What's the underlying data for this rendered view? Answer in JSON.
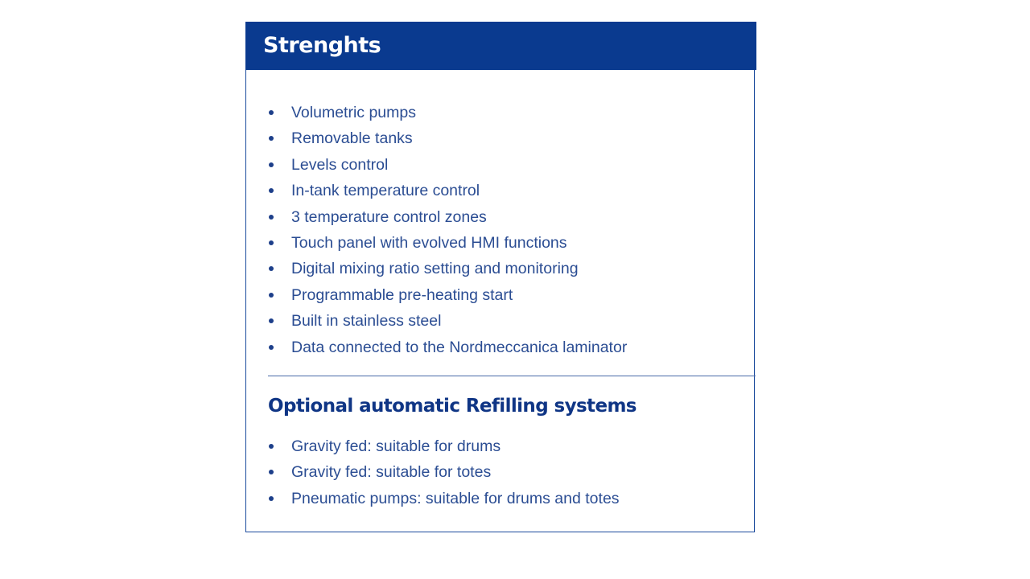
{
  "header": {
    "title": "Strenghts",
    "background": "#0a3a8f"
  },
  "strengths": [
    "Volumetric pumps",
    "Removable tanks",
    "Levels control",
    "In-tank temperature control",
    "3 temperature control zones",
    "Touch panel with evolved HMI functions",
    "Digital mixing ratio setting and monitoring",
    "Programmable pre-heating start",
    "Built in stainless steel",
    "Data connected to the Nordmeccanica laminator"
  ],
  "optional": {
    "heading": "Optional automatic Refilling systems",
    "items": [
      "Gravity fed: suitable for drums",
      "Gravity fed: suitable for totes",
      "Pneumatic pumps: suitable for drums and totes"
    ]
  }
}
